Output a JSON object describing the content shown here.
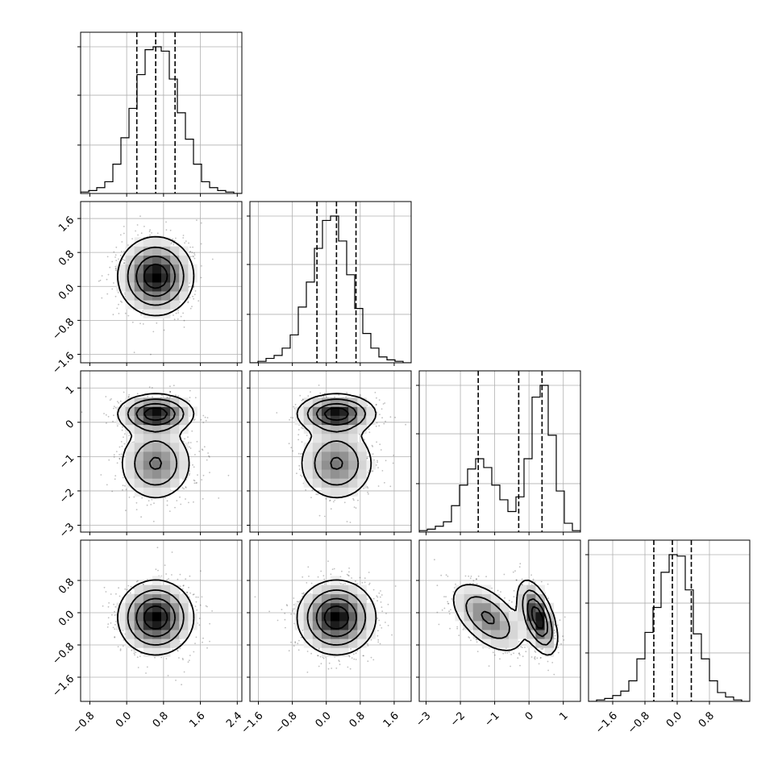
{
  "chart_data": {
    "type": "corner",
    "grid": true,
    "colors": {
      "ink": "#000000",
      "grid": "#b0b0b0",
      "density_light": "#ffffff",
      "density_dark": "#000000"
    },
    "variables": [
      {
        "range": [
          -1.0,
          2.5
        ],
        "ticks": [
          -0.8,
          0.0,
          0.8,
          1.6,
          2.4
        ],
        "tick_labels": [
          "−0.8",
          "0.0",
          "0.8",
          "1.6",
          "2.4"
        ],
        "quantiles": [
          0.22,
          0.63,
          1.05
        ],
        "components": [
          {
            "mean": 0.63,
            "sd": 0.4,
            "weight": 1.0
          }
        ]
      },
      {
        "range": [
          -1.8,
          2.0
        ],
        "ticks": [
          -1.6,
          -0.8,
          0.0,
          0.8,
          1.6
        ],
        "tick_labels": [
          "−1.6",
          "−0.8",
          "0.0",
          "0.8",
          "1.6"
        ],
        "quantiles": [
          -0.22,
          0.24,
          0.7
        ],
        "components": [
          {
            "mean": 0.24,
            "sd": 0.45,
            "weight": 1.0
          }
        ]
      },
      {
        "range": [
          -3.2,
          1.5
        ],
        "ticks": [
          -3,
          -2,
          -1,
          0,
          1
        ],
        "tick_labels": [
          "−3",
          "−2",
          "−1",
          "0",
          "1"
        ],
        "quantiles": [
          -1.48,
          -0.3,
          0.38
        ],
        "components": [
          {
            "mean": -1.2,
            "sd": 0.55,
            "weight": 0.55
          },
          {
            "mean": 0.25,
            "sd": 0.28,
            "weight": 0.45
          }
        ]
      },
      {
        "range": [
          -2.2,
          1.8
        ],
        "ticks": [
          -1.6,
          -0.8,
          0.0,
          0.8
        ],
        "tick_labels": [
          "−1.6",
          "−0.8",
          "0.0",
          "0.8"
        ],
        "quantiles": [
          -0.58,
          -0.12,
          0.35
        ],
        "components": [
          {
            "mean": -0.12,
            "sd": 0.45,
            "weight": 1.0
          }
        ]
      }
    ],
    "histogram_counts": [
      [
        0.01,
        0.02,
        0.04,
        0.08,
        0.2,
        0.38,
        0.58,
        0.81,
        0.98,
        1.0,
        0.97,
        0.78,
        0.55,
        0.37,
        0.2,
        0.08,
        0.04,
        0.02,
        0.01,
        0.0
      ],
      [
        0.0,
        0.01,
        0.03,
        0.05,
        0.1,
        0.19,
        0.38,
        0.55,
        0.78,
        0.97,
        1.0,
        0.83,
        0.6,
        0.37,
        0.2,
        0.1,
        0.04,
        0.02,
        0.01,
        0.0
      ],
      [
        0.01,
        0.02,
        0.04,
        0.07,
        0.18,
        0.32,
        0.43,
        0.5,
        0.44,
        0.32,
        0.22,
        0.14,
        0.24,
        0.5,
        0.92,
        1.0,
        0.66,
        0.28,
        0.06,
        0.01
      ],
      [
        0.0,
        0.01,
        0.02,
        0.04,
        0.07,
        0.14,
        0.29,
        0.47,
        0.64,
        0.88,
        1.0,
        0.99,
        0.76,
        0.46,
        0.29,
        0.14,
        0.06,
        0.03,
        0.01,
        0.0
      ]
    ],
    "pair_correlations": {
      "1-0": 0.0,
      "2-0": 0.0,
      "2-1": 0.0,
      "3-0": 0.0,
      "3-1": 0.0,
      "3-2": -0.55
    },
    "hist_ticks": [
      0.33,
      0.67,
      1.0
    ]
  }
}
